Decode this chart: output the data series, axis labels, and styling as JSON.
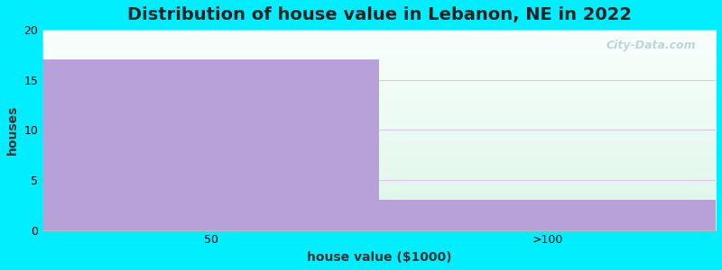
{
  "categories": [
    "50",
    ">100"
  ],
  "values": [
    17,
    3
  ],
  "bar_color": "#b8a0d8",
  "background_color": "#00eeff",
  "plot_bg_top": "#ddf5e8",
  "plot_bg_bottom": "#f8fffc",
  "grid_color": "#d8c8e8",
  "title": "Distribution of house value in Lebanon, NE in 2022",
  "xlabel": "house value ($1000)",
  "ylabel": "houses",
  "ylim": [
    0,
    20
  ],
  "yticks": [
    0,
    5,
    10,
    15,
    20
  ],
  "title_fontsize": 14,
  "label_fontsize": 10,
  "tick_fontsize": 9,
  "watermark": "City-Data.com"
}
